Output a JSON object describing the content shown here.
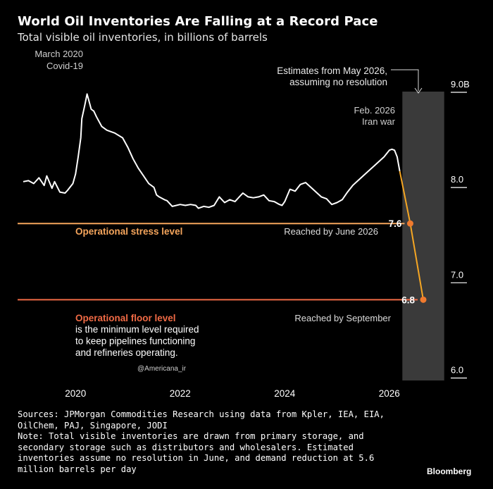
{
  "header": {
    "title": "World Oil Inventories Are Falling at a Record Pace",
    "subtitle": "Total visible oil inventories, in billions of barrels"
  },
  "chart_data": {
    "type": "line",
    "title": "World Oil Inventories Are Falling at a Record Pace",
    "subtitle": "Total visible oil inventories, in billions of barrels",
    "xlabel": "",
    "ylabel": "",
    "xlim": [
      2019.0,
      2027.0
    ],
    "ylim": [
      5.9,
      9.0
    ],
    "x_ticks": [
      {
        "value": 2020,
        "label": "2020"
      },
      {
        "value": 2022,
        "label": "2022"
      },
      {
        "value": 2024,
        "label": "2024"
      },
      {
        "value": 2026,
        "label": "2026"
      }
    ],
    "y_ticks": [
      {
        "value": 9.0,
        "label": "9.0B"
      },
      {
        "value": 8.0,
        "label": "8.0"
      },
      {
        "value": 7.0,
        "label": "7.0"
      },
      {
        "value": 6.0,
        "label": "6.0"
      }
    ],
    "grid": false,
    "series": [
      {
        "color": "#ffffff",
        "x": [
          2019.0,
          2019.1,
          2019.2,
          2019.3,
          2019.4,
          2019.45,
          2019.55,
          2019.6,
          2019.7,
          2019.8,
          2019.85,
          2019.95,
          2020.0,
          2020.05,
          2020.1,
          2020.12,
          2020.18,
          2020.22,
          2020.27,
          2020.3,
          2020.35,
          2020.4,
          2020.5,
          2020.6,
          2020.75,
          2020.9,
          2021.0,
          2021.1,
          2021.2,
          2021.3,
          2021.4,
          2021.5,
          2021.55,
          2021.6,
          2021.7,
          2021.75,
          2021.85,
          2022.0,
          2022.1,
          2022.2,
          2022.3,
          2022.35,
          2022.45,
          2022.55,
          2022.65,
          2022.75,
          2022.85,
          2022.95,
          2023.05,
          2023.15,
          2023.2,
          2023.3,
          2023.4,
          2023.5,
          2023.6,
          2023.7,
          2023.8,
          2023.9,
          2023.95,
          2024.0,
          2024.1,
          2024.2,
          2024.3,
          2024.4,
          2024.5,
          2024.6,
          2024.7,
          2024.8,
          2024.9,
          2025.0,
          2025.1,
          2025.2,
          2025.3,
          2025.4,
          2025.5,
          2025.6,
          2025.7,
          2025.8,
          2025.9,
          2026.0,
          2026.05,
          2026.1,
          2026.15,
          2026.2
        ],
        "y": [
          8.04,
          8.05,
          8.02,
          8.08,
          8.0,
          8.1,
          7.97,
          8.04,
          7.93,
          7.92,
          7.95,
          8.02,
          8.12,
          8.3,
          8.5,
          8.7,
          8.85,
          8.96,
          8.86,
          8.8,
          8.78,
          8.72,
          8.62,
          8.58,
          8.55,
          8.5,
          8.4,
          8.28,
          8.18,
          8.1,
          8.02,
          7.98,
          7.9,
          7.88,
          7.85,
          7.84,
          7.78,
          7.8,
          7.79,
          7.8,
          7.79,
          7.76,
          7.78,
          7.77,
          7.79,
          7.88,
          7.82,
          7.85,
          7.83,
          7.89,
          7.92,
          7.88,
          7.87,
          7.88,
          7.9,
          7.84,
          7.83,
          7.8,
          7.79,
          7.83,
          7.96,
          7.94,
          8.01,
          8.03,
          7.98,
          7.93,
          7.88,
          7.86,
          7.8,
          7.82,
          7.85,
          7.93,
          8.0,
          8.05,
          8.1,
          8.15,
          8.2,
          8.25,
          8.3,
          8.37,
          8.38,
          8.37,
          8.3,
          8.15
        ]
      },
      {
        "color": "#f5a623",
        "x": [
          2026.2,
          2026.4,
          2026.65
        ],
        "y": [
          8.15,
          7.6,
          6.8
        ]
      }
    ],
    "points": [
      {
        "x": 2026.4,
        "y": 7.6,
        "label": "7.6"
      },
      {
        "x": 2026.65,
        "y": 6.8,
        "label": "6.8"
      }
    ],
    "reference_lines": [
      {
        "y": 7.6,
        "color": "#f5a55c",
        "label": "Operational stress level",
        "note": "Reached by June 2026"
      },
      {
        "y": 6.8,
        "color": "#f06a45",
        "label": "Operational floor level",
        "note": "Reached by September"
      }
    ],
    "shaded_region": {
      "x_start": 2026.25,
      "x_end": 2027.05,
      "color": "#3a3a3a",
      "label_line1": "Estimates from May 2026,",
      "label_line2": "assuming no resolution"
    },
    "annotations": [
      {
        "x": 2020.2,
        "line1": "March 2020",
        "line2": "Covid-19"
      },
      {
        "x": 2026.0,
        "line1": "Feb. 2026",
        "line2": "Iran war"
      }
    ],
    "floor_description": [
      "is the minimum level required",
      "to keep pipelines functioning",
      "and refineries operating."
    ],
    "watermark": "@Americana_ir"
  },
  "footer": {
    "lines": [
      "Sources: JPMorgan Commodities Research using data from Kpler, IEA, EIA,",
      "OilChem, PAJ, Singapore, JODI",
      "Note: Total visible inventories are drawn from primary storage, and",
      "secondary storage such as distributors and wholesalers. Estimated",
      "inventories assume no resolution in June, and demand reduction at 5.6",
      "million barrels per day"
    ],
    "brand": "Bloomberg"
  }
}
